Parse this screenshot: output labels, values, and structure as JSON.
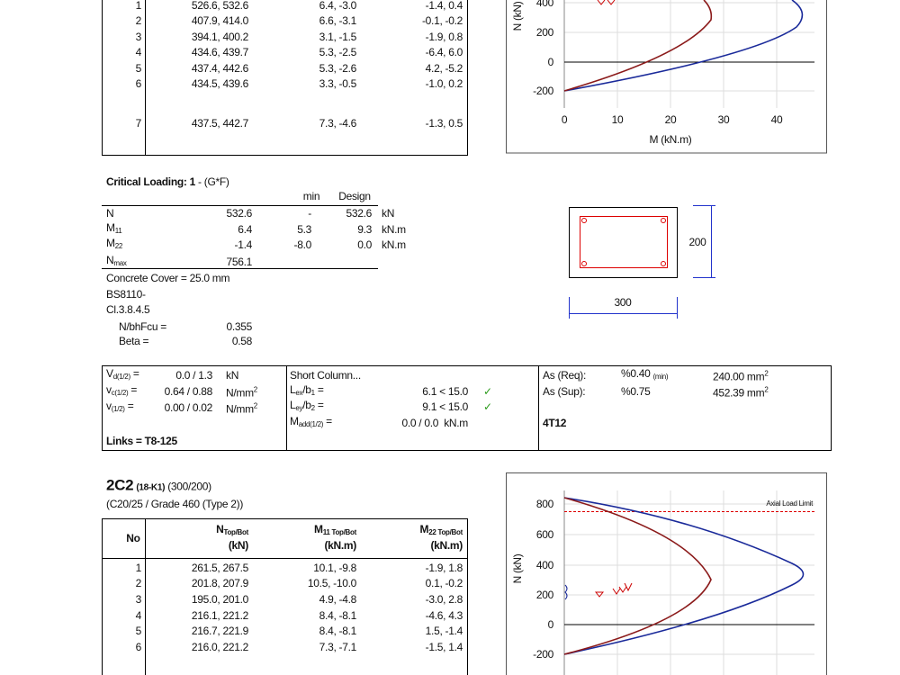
{
  "top_table": {
    "rows": [
      [
        "1",
        "526.6, 532.6",
        "6.4, -3.0",
        "-1.4, 0.4"
      ],
      [
        "2",
        "407.9, 414.0",
        "6.6, -3.1",
        "-0.1, -0.2"
      ],
      [
        "3",
        "394.1, 400.2",
        "3.1, -1.5",
        "-1.9, 0.8"
      ],
      [
        "4",
        "434.6, 439.7",
        "5.3, -2.5",
        "-6.4, 6.0"
      ],
      [
        "5",
        "437.4, 442.6",
        "5.3, -2.6",
        "4.2, -5.2"
      ],
      [
        "6",
        "434.5, 439.6",
        "3.3, -0.5",
        "-1.0, 0.2"
      ],
      [
        "7",
        "437.5, 442.7",
        "7.3, -4.6",
        "-1.3, 0.5"
      ]
    ]
  },
  "top_chart": {
    "y_label": "N (kN)",
    "x_label": "M (kN.m)",
    "yticks": [
      "400",
      "200",
      "0",
      "-200"
    ],
    "xticks": [
      "0",
      "10",
      "20",
      "30",
      "40"
    ]
  },
  "critical_loading": {
    "title": "Critical Loading: 1",
    "case": "- (G*F)",
    "headers": [
      "min",
      "Design"
    ],
    "rows": [
      {
        "label": [
          "N"
        ],
        "value": "532.6",
        "min": "-",
        "design": "532.6",
        "unit": "kN"
      },
      {
        "label": [
          "M",
          {
            "sub": "11"
          }
        ],
        "value": "6.4",
        "min": "5.3",
        "design": "9.3",
        "unit": "kN.m"
      },
      {
        "label": [
          "M",
          {
            "sub": "22"
          }
        ],
        "value": "-1.4",
        "min": "-8.0",
        "design": "0.0",
        "unit": "kN.m"
      },
      {
        "label": [
          "N",
          {
            "sub": "max"
          }
        ],
        "value": "756.1"
      }
    ],
    "notes": [
      "Concrete Cover = 25.0 mm",
      "BS8110-",
      "Cl.3.8.4.5"
    ],
    "params": [
      {
        "label": "N/bhFcu =",
        "value": "0.355"
      },
      {
        "label": "Beta =",
        "value": "0.58"
      }
    ]
  },
  "section": {
    "height": "200",
    "width": "300"
  },
  "checks": {
    "shear": [
      {
        "label": [
          "V",
          {
            "sub": "d(1/2)"
          },
          " ="
        ],
        "value": "0.0 / 1.3",
        "unit": [
          "kN"
        ]
      },
      {
        "label": [
          "v",
          {
            "sub": "c(1/2)"
          },
          " ="
        ],
        "value": "0.64 / 0.88",
        "unit": [
          "N/mm",
          {
            "sup": "2"
          }
        ]
      },
      {
        "label": [
          "v",
          {
            "sub": "(1/2)"
          },
          " ="
        ],
        "value": "0.00 / 0.02",
        "unit": [
          "N/mm",
          {
            "sup": "2"
          }
        ]
      }
    ],
    "links": "Links = T8-125",
    "column_title": "Short Column...",
    "slenderness": [
      {
        "label": [
          "L",
          {
            "sub": "ex"
          },
          "/b",
          {
            "sub": "1"
          },
          " ="
        ],
        "value": "6.1 < 15.0",
        "check": "✓"
      },
      {
        "label": [
          "L",
          {
            "sub": "ey"
          },
          "/b",
          {
            "sub": "2"
          },
          " ="
        ],
        "value": "9.1 < 15.0",
        "check": "✓"
      },
      {
        "label": [
          "M",
          {
            "sub": "add(1/2)"
          },
          " ="
        ],
        "value": "0.0 / 0.0  kN.m"
      }
    ],
    "steel": [
      {
        "label": "As (Req):",
        "pct": [
          "%0.40 ",
          {
            "sub": "(min)"
          }
        ],
        "area": [
          "240.00 mm",
          {
            "sup": "2"
          }
        ]
      },
      {
        "label": "As (Sup):",
        "pct": [
          "%0.75"
        ],
        "area": [
          "452.39 mm",
          {
            "sup": "2"
          }
        ]
      }
    ],
    "bars": "4T12"
  },
  "column2": {
    "title": "2C2",
    "ref": "(18-K1)",
    "size": "(300/200)",
    "subtitle": "(C20/25 / Grade 460 (Type 2))",
    "headers": [
      {
        "line1": [
          "No"
        ]
      },
      {
        "line1": [
          "N",
          {
            "sub": "Top/Bot"
          }
        ],
        "line2": "(kN)"
      },
      {
        "line1": [
          "M",
          {
            "sub": "11 Top/Bot"
          }
        ],
        "line2": "(kN.m)"
      },
      {
        "line1": [
          "M",
          {
            "sub": "22 Top/Bot"
          }
        ],
        "line2": "(kN.m)"
      }
    ],
    "rows": [
      [
        "1",
        "261.5, 267.5",
        "10.1, -9.8",
        "-1.9, 1.8"
      ],
      [
        "2",
        "201.8, 207.9",
        "10.5, -10.0",
        "0.1, -0.2"
      ],
      [
        "3",
        "195.0, 201.0",
        "4.9, -4.8",
        "-3.0, 2.8"
      ],
      [
        "4",
        "216.1, 221.2",
        "8.4, -8.1",
        "-4.6, 4.3"
      ],
      [
        "5",
        "216.7, 221.9",
        "8.4, -8.1",
        "1.5, -1.4"
      ],
      [
        "6",
        "216.0, 221.2",
        "7.3, -7.1",
        "-1.5, 1.4"
      ]
    ]
  },
  "bottom_chart": {
    "y_label": "N (kN)",
    "yticks": [
      "800",
      "600",
      "400",
      "200",
      "0",
      "-200"
    ],
    "limit_label": "Axial Load Limit"
  }
}
